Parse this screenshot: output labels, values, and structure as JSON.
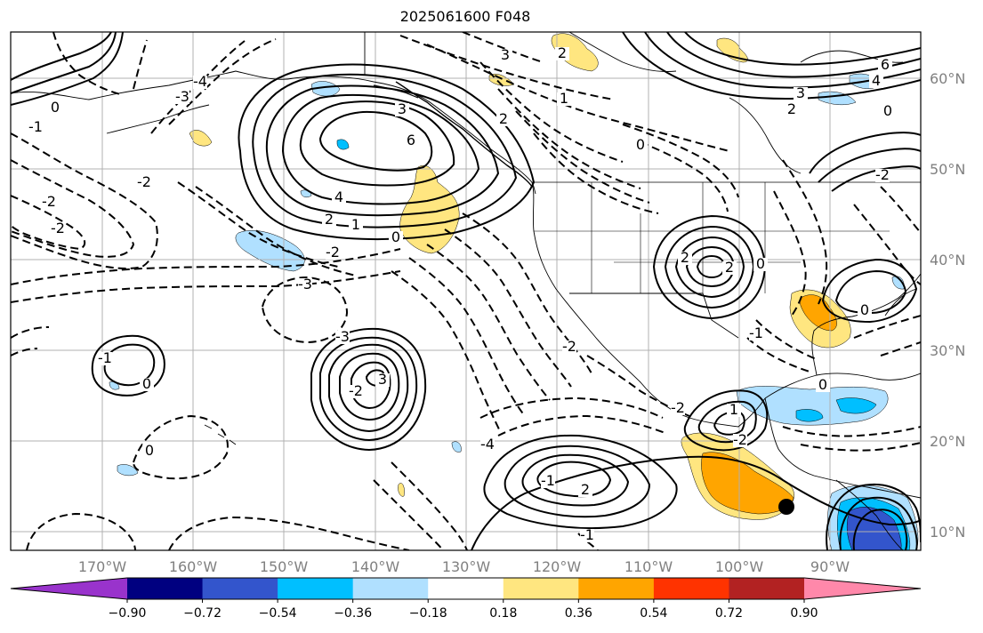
{
  "title": "2025061600 F048",
  "map": {
    "lon_labels": [
      "170°W",
      "160°W",
      "150°W",
      "140°W",
      "130°W",
      "120°W",
      "110°W",
      "100°W",
      "90°W"
    ],
    "lat_labels": [
      "60°N",
      "50°N",
      "40°N",
      "30°N",
      "20°N",
      "10°N"
    ],
    "contour_labels": [
      "0",
      "-1",
      "-2",
      "-2",
      "-3",
      "-4",
      "-2",
      "-3",
      "3",
      "6",
      "4",
      "2",
      "1",
      "0",
      "-2",
      "-3",
      "-2",
      "0",
      "-1",
      "-2",
      "3",
      "-4",
      "0",
      "2",
      "-1",
      "-1",
      "-2",
      "2",
      "2",
      "0",
      "0",
      "-1",
      "1",
      "-2",
      "0",
      "2",
      "3",
      "2",
      "1",
      "0",
      "6",
      "4",
      "3",
      "2",
      "0",
      "-2"
    ],
    "marker": "storm-center-dot",
    "colors": {
      "contour": "#000000",
      "grid": "#b0b0b0",
      "coast": "#000000"
    }
  },
  "colorbar": {
    "tick_labels": [
      "−0.90",
      "−0.72",
      "−0.54",
      "−0.36",
      "−0.18",
      "0.18",
      "0.36",
      "0.54",
      "0.72",
      "0.90"
    ],
    "colors": [
      "#9933cc",
      "#000080",
      "#3355cc",
      "#00bfff",
      "#b0e0ff",
      "#ffffff",
      "#ffe680",
      "#ffa500",
      "#ff3300",
      "#b22222",
      "#ff88aa"
    ]
  }
}
